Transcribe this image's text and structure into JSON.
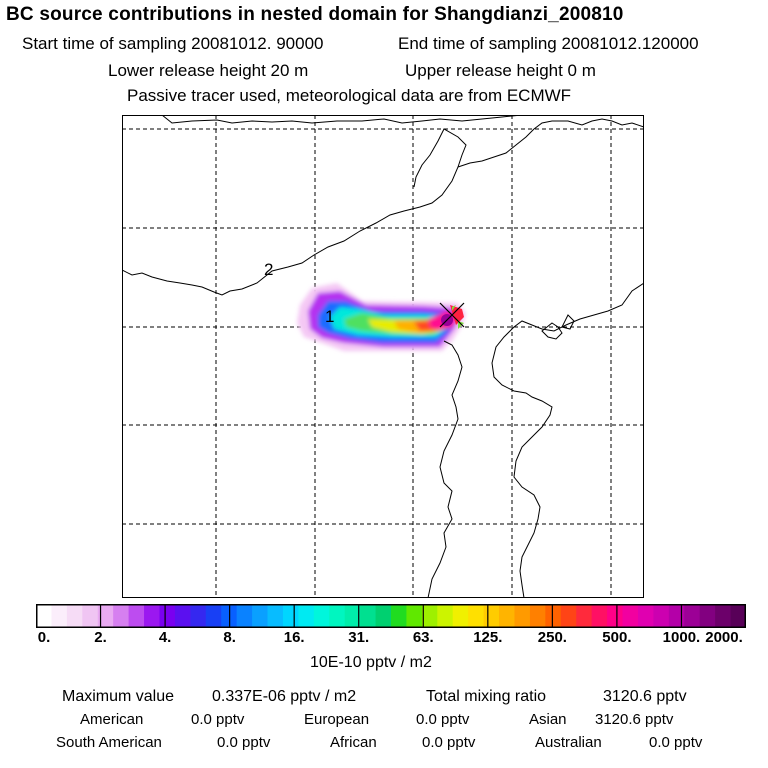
{
  "header": {
    "title": "BC  source contributions in nested domain for Shangdianzi_200810",
    "start_time": "Start time of sampling 20081012. 90000",
    "end_time": "End time of sampling 20081012.120000",
    "lower_height": "Lower release height   20 m",
    "upper_height": "Upper release height    0 m",
    "tracer_note": "Passive tracer used, meteorological data are from ECMWF"
  },
  "map": {
    "contour_labels": [
      "2",
      "1"
    ],
    "receptor_marker": "x"
  },
  "colorbar": {
    "ticks": [
      "0.",
      "2.",
      "4.",
      "8.",
      "16.",
      "31.",
      "63.",
      "125.",
      "250.",
      "500.",
      "1000.",
      "2000."
    ],
    "colors": [
      "#ffffff",
      "#fbeefb",
      "#f6dcf6",
      "#f0c5f3",
      "#e9aaf2",
      "#d67ff0",
      "#bd4cf0",
      "#9b18f0",
      "#7a00f0",
      "#5b10f0",
      "#3528f0",
      "#1840f5",
      "#0860ff",
      "#0a82ff",
      "#0aa0ff",
      "#08bcff",
      "#00d6ff",
      "#00eaf2",
      "#00f6dc",
      "#00f6c0",
      "#00eeaa",
      "#00e090",
      "#00d070",
      "#20dc20",
      "#60e800",
      "#9ef000",
      "#ccf400",
      "#f0f000",
      "#ffe000",
      "#ffcc00",
      "#ffb400",
      "#ff9a00",
      "#ff8000",
      "#ff6200",
      "#ff4416",
      "#ff2a3c",
      "#ff1064",
      "#ff0088",
      "#f200a0",
      "#e000b0",
      "#cc00b0",
      "#b400a8",
      "#9c0096",
      "#820080",
      "#6c006a",
      "#580058"
    ],
    "units": "10E-10 pptv / m2"
  },
  "stats": {
    "max_label": "Maximum value",
    "max_value": "0.337E-06 pptv / m2",
    "total_label": "Total mixing ratio",
    "total_value": "3120.6 pptv",
    "regions": [
      {
        "name": "American",
        "value": "0.0 pptv"
      },
      {
        "name": "European",
        "value": "0.0 pptv"
      },
      {
        "name": "Asian",
        "value": "3120.6 pptv"
      },
      {
        "name": "South American",
        "value": "0.0 pptv"
      },
      {
        "name": "African",
        "value": "0.0 pptv"
      },
      {
        "name": "Australian",
        "value": "0.0 pptv"
      }
    ]
  }
}
